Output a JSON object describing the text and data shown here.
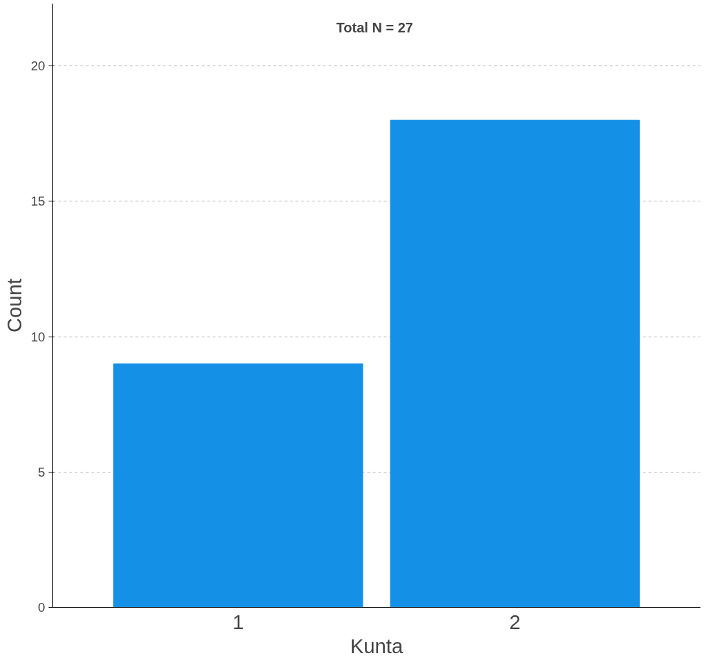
{
  "chart_data": {
    "type": "bar",
    "categories": [
      "1",
      "2"
    ],
    "values": [
      9,
      18
    ],
    "color": "#1490e6",
    "xlabel": "Kunta",
    "ylabel": "Count",
    "ylim": [
      0,
      22.3
    ],
    "yticks": [
      0,
      5,
      10,
      15,
      20
    ],
    "grid": "y",
    "annotations": [
      "Total N =  27"
    ]
  }
}
